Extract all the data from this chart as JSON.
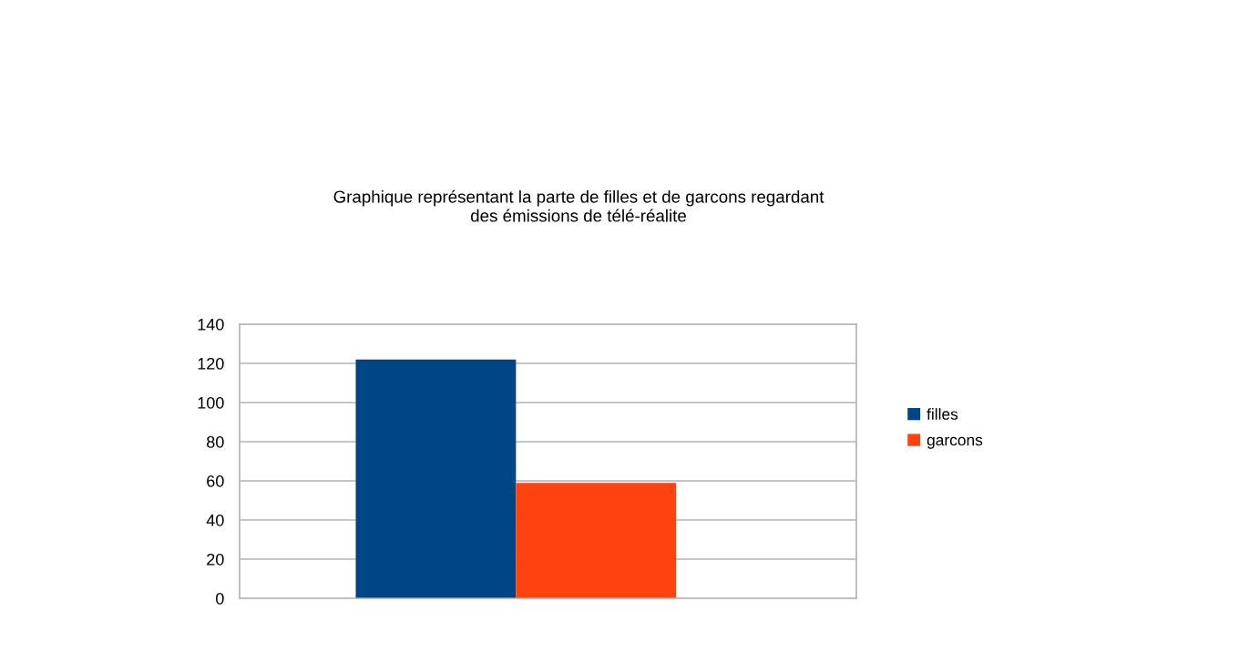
{
  "chart_data": {
    "type": "bar",
    "title": "Graphique représentant la parte de filles et de garcons regardant\ndes émissions de télé-réalite",
    "categories": [
      null
    ],
    "series": [
      {
        "name": "filles",
        "color": "#004586",
        "values": [
          122
        ]
      },
      {
        "name": "garcons",
        "color": "#ff420e",
        "values": [
          59
        ]
      }
    ],
    "ylim": [
      0,
      140
    ],
    "yticks": [
      0,
      20,
      40,
      60,
      80,
      100,
      120,
      140
    ],
    "grid": "y",
    "legend": "right"
  }
}
